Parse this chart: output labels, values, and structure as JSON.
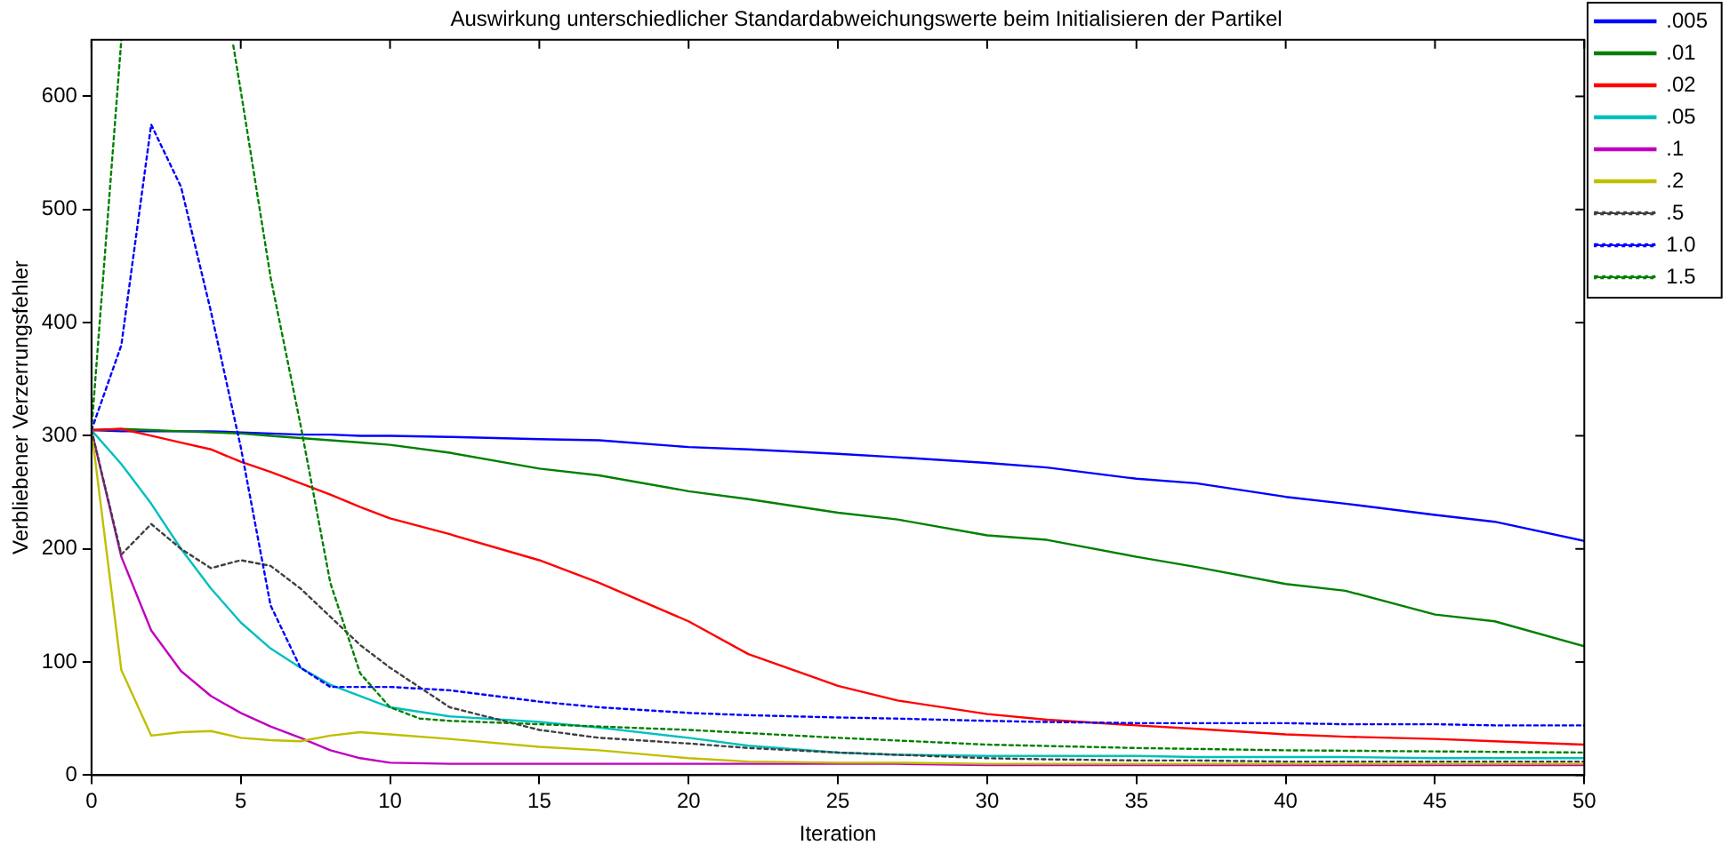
{
  "chart_data": {
    "type": "line",
    "title": "Auswirkung unterschiedlicher Standardabweichungswerte beim Initialisieren der Partikel",
    "xlabel": "Iteration",
    "ylabel": "Verbliebener Verzerrungsfehler",
    "xlim": [
      0,
      50
    ],
    "xticks": [
      0,
      5,
      10,
      15,
      20,
      25,
      30,
      35,
      40,
      45,
      50
    ],
    "ylim": [
      0,
      650
    ],
    "yticks": [
      0,
      100,
      200,
      300,
      400,
      500,
      600
    ],
    "legend": "top right",
    "marker": "none",
    "x": [
      0,
      1,
      2,
      3,
      4,
      5,
      6,
      7,
      8,
      9,
      10,
      12,
      15,
      17,
      20,
      22,
      25,
      27,
      30,
      32,
      35,
      37,
      40,
      42,
      45,
      47,
      50
    ],
    "series": [
      {
        "name": ".005",
        "color": "#0000ff",
        "line_style": "solid",
        "values": [
          305,
          304,
          304,
          304,
          304,
          303,
          302,
          301,
          301,
          300,
          300,
          299,
          297,
          296,
          290,
          288,
          284,
          281,
          276,
          272,
          262,
          258,
          246,
          240,
          230,
          224,
          207
        ]
      },
      {
        "name": ".01",
        "color": "#008000",
        "line_style": "solid",
        "values": [
          305,
          306,
          305,
          304,
          303,
          302,
          300,
          298,
          296,
          294,
          292,
          285,
          271,
          265,
          251,
          244,
          232,
          226,
          212,
          208,
          193,
          184,
          169,
          163,
          142,
          136,
          114
        ]
      },
      {
        "name": ".02",
        "color": "#ff0000",
        "line_style": "solid",
        "values": [
          305,
          306,
          300,
          294,
          288,
          277,
          268,
          258,
          248,
          237,
          227,
          213,
          190,
          170,
          136,
          107,
          79,
          66,
          54,
          49,
          44,
          41,
          36,
          34,
          32,
          30,
          27
        ]
      },
      {
        "name": ".05",
        "color": "#00bfbf",
        "line_style": "solid",
        "values": [
          305,
          275,
          240,
          200,
          165,
          135,
          112,
          95,
          80,
          70,
          60,
          52,
          47,
          42,
          33,
          26,
          20,
          18,
          17,
          17,
          17,
          16,
          16,
          16,
          15,
          15,
          15
        ]
      },
      {
        "name": ".1",
        "color": "#bf00bf",
        "line_style": "solid",
        "values": [
          305,
          193,
          128,
          92,
          70,
          55,
          43,
          33,
          22,
          15,
          11,
          10,
          10,
          10,
          10,
          10,
          10,
          10,
          9,
          9,
          9,
          9,
          9,
          9,
          9,
          9,
          9
        ]
      },
      {
        "name": ".2",
        "color": "#bfbf00",
        "line_style": "solid",
        "values": [
          305,
          93,
          35,
          38,
          39,
          33,
          31,
          30,
          35,
          38,
          36,
          32,
          25,
          22,
          15,
          12,
          11,
          11,
          10,
          10,
          10,
          10,
          10,
          10,
          10,
          10,
          10
        ]
      },
      {
        "name": ".5",
        "color": "#404040",
        "line_style": "dotted",
        "values": [
          305,
          195,
          222,
          200,
          183,
          190,
          185,
          165,
          140,
          115,
          95,
          60,
          40,
          33,
          28,
          24,
          20,
          18,
          15,
          14,
          13,
          13,
          12,
          12,
          12,
          12,
          12
        ]
      },
      {
        "name": "1.0",
        "color": "#0000ff",
        "line_style": "dotted",
        "values": [
          305,
          380,
          575,
          520,
          410,
          290,
          150,
          95,
          78,
          78,
          78,
          75,
          65,
          60,
          55,
          53,
          51,
          50,
          48,
          47,
          46,
          46,
          46,
          45,
          45,
          44,
          44
        ]
      },
      {
        "name": "1.5",
        "color": "#008000",
        "line_style": "dotted",
        "x": [
          0,
          1,
          3,
          4.75,
          5,
          6,
          7,
          8,
          9,
          10,
          11,
          12,
          15,
          20,
          25,
          30,
          35,
          40,
          45,
          50
        ],
        "values": [
          305,
          650,
          null,
          645,
          605,
          440,
          310,
          170,
          90,
          60,
          50,
          48,
          45,
          40,
          33,
          27,
          24,
          22,
          21,
          20
        ]
      }
    ]
  }
}
